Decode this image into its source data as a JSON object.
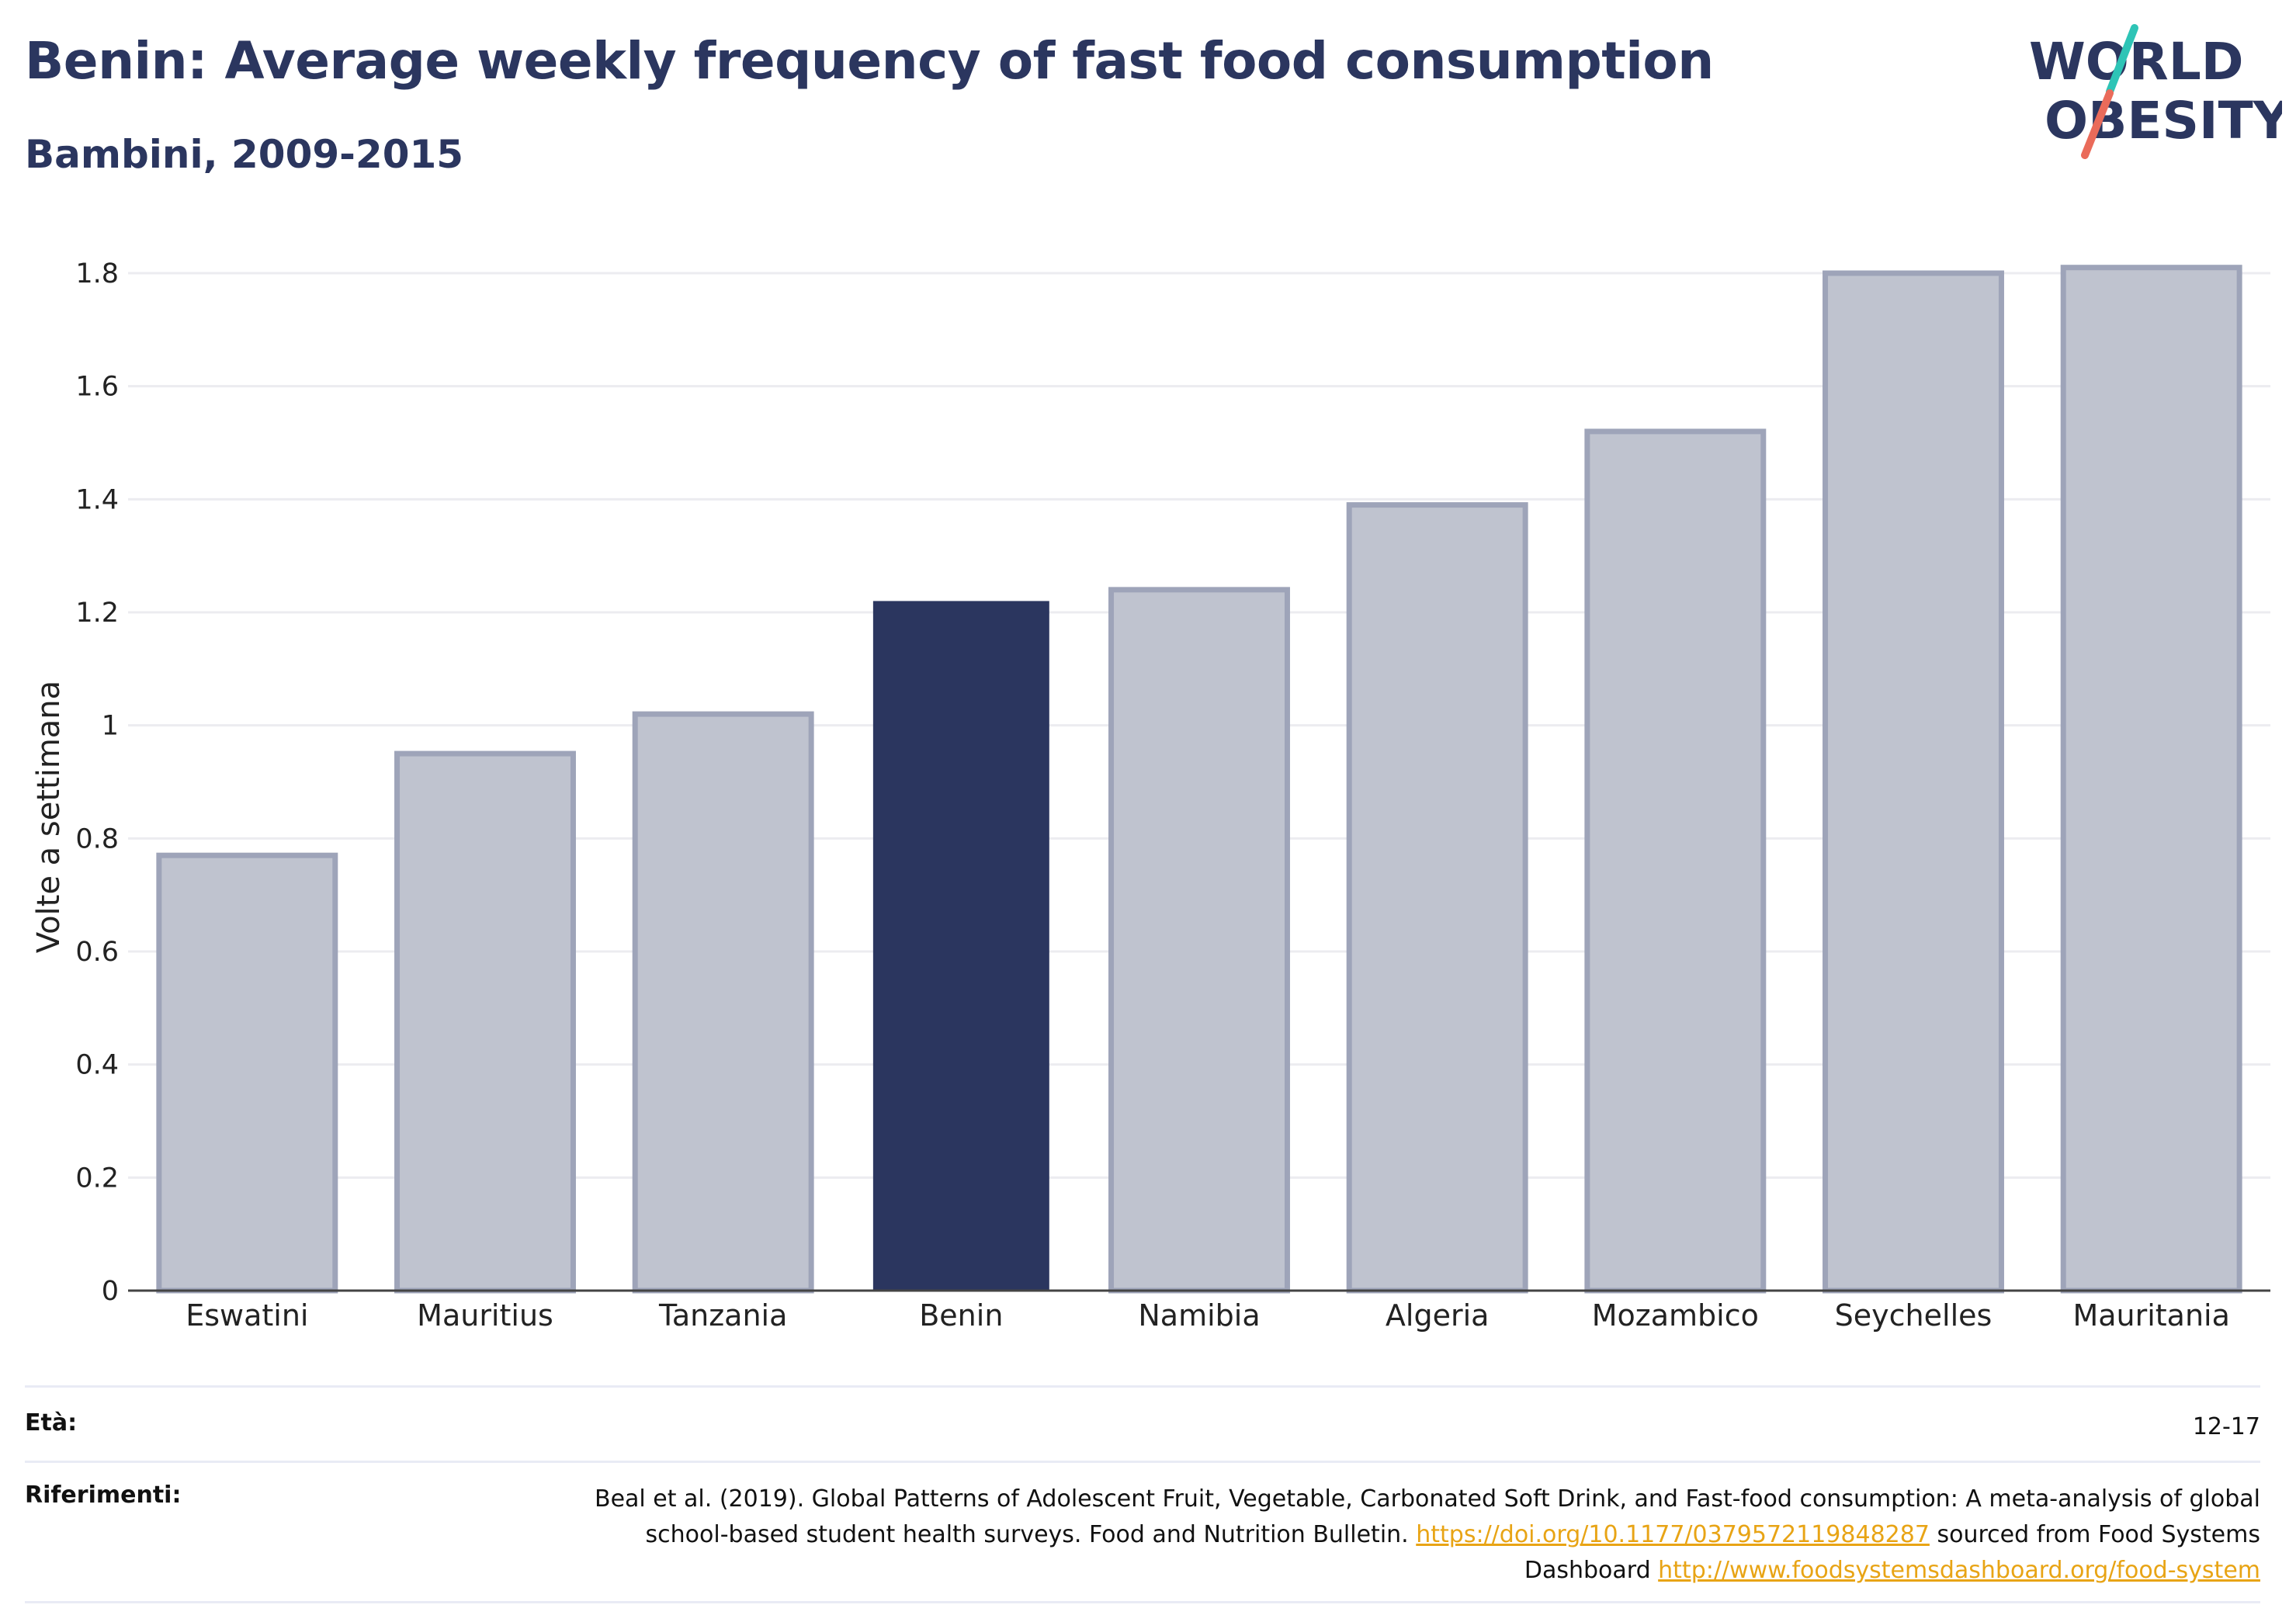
{
  "header": {
    "title": "Benin: Average weekly frequency of fast food consumption",
    "subtitle": "Bambini, 2009-2015"
  },
  "logo": {
    "line1": "WORLD",
    "line2": "OBESITY"
  },
  "colors": {
    "highlight": "#2b365f",
    "bar_fill": "#bfc3cf",
    "bar_stroke": "#9ea4b9",
    "grid": "#ececf0",
    "logo_text": "#2b365f",
    "logo_teal": "#2ec4b6",
    "logo_coral": "#ea6b5a"
  },
  "chart_data": {
    "type": "bar",
    "categories": [
      "Eswatini",
      "Mauritius",
      "Tanzania",
      "Benin",
      "Namibia",
      "Algeria",
      "Mozambico",
      "Seychelles",
      "Mauritania"
    ],
    "values": [
      0.77,
      0.95,
      1.02,
      1.22,
      1.24,
      1.39,
      1.52,
      1.8,
      1.81
    ],
    "highlight": "Benin",
    "title": "Benin: Average weekly frequency of fast food consumption",
    "subtitle": "Bambini, 2009-2015",
    "xlabel": "",
    "ylabel": "Volte a settimana",
    "ylim": [
      0,
      1.8
    ],
    "yticks": [
      0,
      0.2,
      0.4,
      0.6,
      0.8,
      1,
      1.2,
      1.4,
      1.6,
      1.8
    ],
    "ytick_labels": [
      "0",
      "0.2",
      "0.4",
      "0.6",
      "0.8",
      "1",
      "1.2",
      "1.4",
      "1.6",
      "1.8"
    ],
    "grid": true,
    "legend": "none"
  },
  "footer": {
    "age_label": "Età:",
    "age_value": "12-17",
    "ref_label": "Riferimenti:",
    "ref_text1": "Beal et al. (2019). Global Patterns of Adolescent Fruit, Vegetable, Carbonated Soft Drink, and Fast-food consumption: A meta-analysis of global school-based student health surveys. Food and Nutrition Bulletin. ",
    "ref_link1": "https://doi.org/10.1177/0379572119848287",
    "ref_text2": " sourced from Food Systems Dashboard ",
    "ref_link2": "http://www.foodsystemsdashboard.org/food-system"
  }
}
